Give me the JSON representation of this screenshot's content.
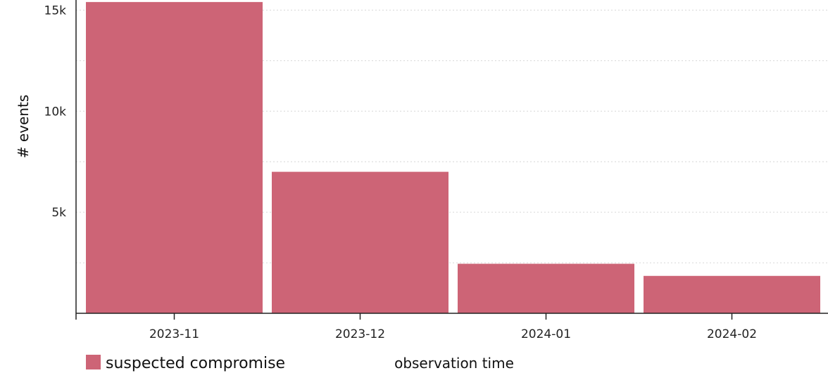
{
  "chart_data": {
    "type": "bar",
    "title": "",
    "xlabel": "observation time",
    "ylabel": "# events",
    "categories": [
      "2023-11",
      "2023-12",
      "2024-01",
      "2024-02"
    ],
    "series": [
      {
        "name": "suspected compromise",
        "color": "#cd6476",
        "values": [
          15400,
          7000,
          2450,
          1850
        ]
      }
    ],
    "ylim": [
      0,
      15500
    ],
    "yticks": [
      {
        "value": 5000,
        "label": "5k"
      },
      {
        "value": 10000,
        "label": "10k"
      },
      {
        "value": 15000,
        "label": "15k"
      }
    ],
    "grid": {
      "y": true,
      "style": "dotted"
    },
    "legend": {
      "position": "bottom-left"
    }
  }
}
